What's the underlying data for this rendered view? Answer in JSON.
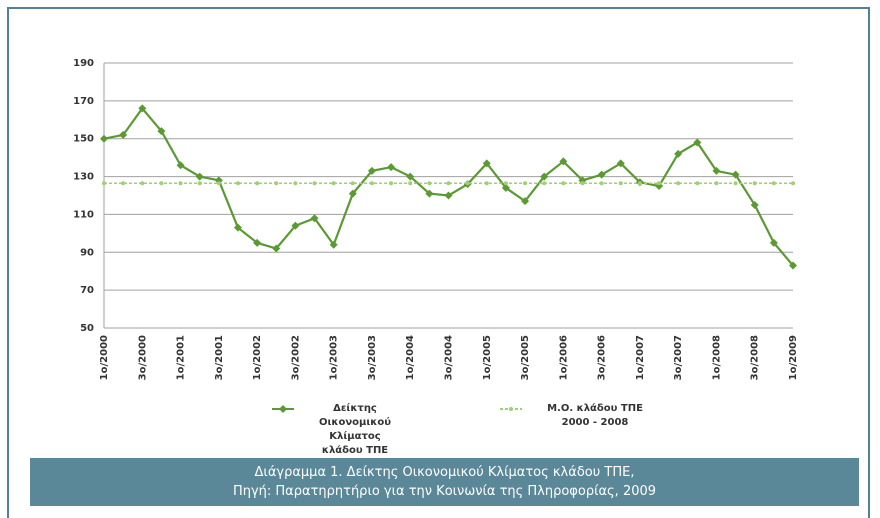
{
  "chart_data": {
    "type": "line",
    "categories": [
      "1ο/2000",
      null,
      "3ο/2000",
      null,
      "1ο/2001",
      null,
      "3ο/2001",
      null,
      "1ο/2002",
      null,
      "3ο/2002",
      null,
      "1ο/2003",
      null,
      "3ο/2003",
      null,
      "1ο/2004",
      null,
      "3ο/2004",
      null,
      "1ο/2005",
      null,
      "3ο/2005",
      null,
      "1ο/2006",
      null,
      "3ο/2006",
      null,
      "1ο/2007",
      null,
      "3ο/2007",
      null,
      "1ο/2008",
      null,
      "3ο/2008",
      null,
      "1ο/2009"
    ],
    "series": [
      {
        "name": "Δείκτης Οικονομικού Κλίματος\nκλάδου ΤΠΕ",
        "color": "#5b9a33",
        "marker": "diamond",
        "values": [
          150,
          152,
          166,
          154,
          136,
          130,
          128,
          103,
          95,
          92,
          104,
          108,
          94,
          121,
          133,
          135,
          130,
          121,
          120,
          126,
          137,
          124,
          117,
          130,
          138,
          128,
          131,
          137,
          127,
          125,
          142,
          148,
          133,
          131,
          115,
          95,
          83
        ]
      },
      {
        "name": "Μ.Ο. κλάδου ΤΠΕ\n2000 - 2008",
        "color": "#9fcf73",
        "marker": "dot",
        "dashed": true,
        "values": [
          126.5,
          126.5,
          126.5,
          126.5,
          126.5,
          126.5,
          126.5,
          126.5,
          126.5,
          126.5,
          126.5,
          126.5,
          126.5,
          126.5,
          126.5,
          126.5,
          126.5,
          126.5,
          126.5,
          126.5,
          126.5,
          126.5,
          126.5,
          126.5,
          126.5,
          126.5,
          126.5,
          126.5,
          126.5,
          126.5,
          126.5,
          126.5,
          126.5,
          126.5,
          126.5,
          126.5,
          126.5
        ]
      }
    ],
    "ylim": [
      50,
      190
    ],
    "yticks": [
      50,
      70,
      90,
      110,
      130,
      150,
      170,
      190
    ],
    "grid": true,
    "caption": [
      "Διάγραμμα 1. Δείκτης Οικονομικού Κλίματος κλάδου ΤΠΕ,",
      "Πηγή: Παρατηρητήριο για την Κοινωνία της Πληροφορίας, 2009"
    ]
  }
}
